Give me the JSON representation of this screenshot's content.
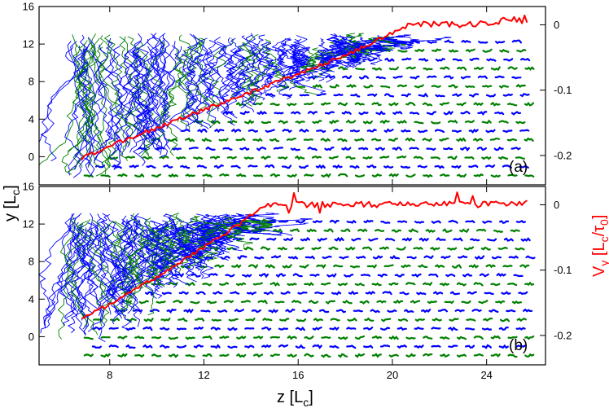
{
  "chart_data": {
    "type": "line",
    "xlabel": "z [L",
    "xlabel_sub": "c",
    "xlabel_suffix": "]",
    "ylabel": "y [L",
    "ylabel_sub": "c",
    "ylabel_suffix": "]",
    "right_ylabel": "V",
    "right_ylabel_sub": "y",
    "right_ylabel_mid": " [L",
    "right_ylabel_sub2": "c",
    "right_ylabel_slash": "/τ",
    "right_ylabel_sub3": "0",
    "right_ylabel_suffix": "]",
    "colors": {
      "velocity": "#ff0000",
      "trajectory_blue": "#0000ff",
      "trajectory_green": "#008000",
      "axis": "#000000"
    },
    "xlim": [
      5,
      26.5
    ],
    "xticks": [
      "8",
      "12",
      "16",
      "20",
      "24"
    ],
    "xtick_values": [
      8,
      12,
      16,
      20,
      24
    ],
    "panels": [
      {
        "label": "(a)",
        "ylim_left": [
          -3,
          16
        ],
        "yticks_left": [
          "0",
          "4",
          "8",
          "12",
          "16"
        ],
        "ytick_values_left": [
          0,
          4,
          8,
          12,
          16
        ],
        "ylim_right": [
          -0.245,
          0.028
        ],
        "yticks_right": [
          "0",
          "-0.1",
          "-0.2"
        ],
        "ytick_values_right": [
          0,
          -0.1,
          -0.2
        ],
        "front_z": [
          6.8,
          20.5
        ],
        "front_y": [
          -1.2,
          13.2
        ],
        "velocity_series": {
          "name": "",
          "z": [
            6.8,
            8,
            10,
            12,
            14,
            16,
            18,
            20,
            20.5,
            21,
            22,
            23,
            24,
            25,
            25.8
          ],
          "vy": [
            -0.205,
            -0.185,
            -0.158,
            -0.13,
            -0.103,
            -0.075,
            -0.047,
            -0.012,
            -0.002,
            0.0,
            0.0,
            0.0,
            0.002,
            0.008,
            0.005
          ]
        }
      },
      {
        "label": "(b)",
        "ylim_left": [
          -3,
          16
        ],
        "yticks_left": [
          "0",
          "4",
          "8",
          "12",
          "16"
        ],
        "ytick_values_left": [
          0,
          4,
          8,
          12,
          16
        ],
        "ylim_right": [
          -0.245,
          0.028
        ],
        "yticks_right": [
          "0",
          "-0.1",
          "-0.2"
        ],
        "ytick_values_right": [
          0,
          -0.1,
          -0.2
        ],
        "front_z": [
          6.8,
          14.5
        ],
        "front_y": [
          1.2,
          13.0
        ],
        "velocity_series": {
          "name": "",
          "z": [
            6.8,
            8,
            10,
            12,
            13.5,
            14.5,
            15,
            16,
            18,
            20,
            22,
            24,
            25,
            25.8
          ],
          "vy": [
            -0.175,
            -0.152,
            -0.11,
            -0.065,
            -0.03,
            -0.003,
            0.0,
            0.0,
            0.0,
            0.0,
            0.0,
            0.0,
            0.003,
            0.002
          ]
        }
      }
    ]
  }
}
